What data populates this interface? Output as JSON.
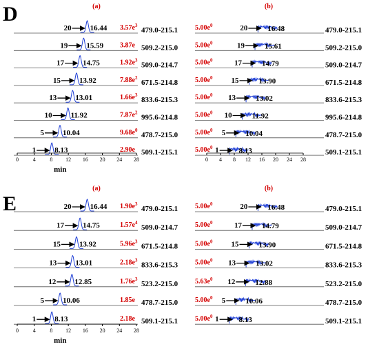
{
  "panels": [
    {
      "label": "D",
      "subpanels": [
        {
          "label": "(a)",
          "xticks": [
            0,
            4,
            8,
            12,
            16,
            20,
            24,
            28
          ],
          "xlabel": "min",
          "rows": [
            {
              "compound": 20,
              "rt": "16.44",
              "intensity": {
                "text": "3.57e",
                "sup": "3"
              },
              "transition": "479.0-215.1"
            },
            {
              "compound": 19,
              "rt": "15.59",
              "intensity": {
                "text": "3.87e"
              },
              "transition": "509.2-215.0"
            },
            {
              "compound": 17,
              "rt": "14.75",
              "intensity": {
                "text": "1.92e",
                "sup": "3"
              },
              "transition": "509.0-214.7"
            },
            {
              "compound": 15,
              "rt": "13.92",
              "intensity": {
                "text": "7.88e",
                "sup": "2"
              },
              "transition": "671.5-214.8"
            },
            {
              "compound": 13,
              "rt": "13.01",
              "intensity": {
                "text": "1.66e",
                "sup": "3"
              },
              "transition": "833.6-215.3"
            },
            {
              "compound": 10,
              "rt": "11.92",
              "intensity": {
                "text": "7.87e",
                "sup": "2"
              },
              "transition": "995.6-214.8"
            },
            {
              "compound": 5,
              "rt": "10.04",
              "intensity": {
                "text": "9.68e",
                "sup": "0"
              },
              "transition": "478.7-215.0"
            },
            {
              "compound": 1,
              "rt": "8.13",
              "intensity": {
                "text": "2.90e"
              },
              "transition": "509.1-215.1"
            }
          ]
        },
        {
          "label": "(b)",
          "xticks": [
            0,
            4,
            8,
            12,
            16,
            20,
            24,
            28
          ],
          "rows": [
            {
              "compound": 20,
              "rt": "16.48",
              "intensity": {
                "text": "5.00e",
                "sup": "0"
              },
              "transition": "479.0-215.1"
            },
            {
              "compound": 19,
              "rt": "15.61",
              "intensity": {
                "text": "5.00e",
                "sup": "0"
              },
              "transition": "509.2-215.0"
            },
            {
              "compound": 17,
              "rt": "14.79",
              "intensity": {
                "text": "5.00e",
                "sup": "0"
              },
              "transition": "509.0-214.7"
            },
            {
              "compound": 15,
              "rt": "13.90",
              "intensity": {
                "text": "5.00e",
                "sup": "0"
              },
              "transition": "671.5-214.8"
            },
            {
              "compound": 13,
              "rt": "13.02",
              "intensity": {
                "text": "5.00e",
                "sup": "0"
              },
              "transition": "833.6-215.3"
            },
            {
              "compound": 10,
              "rt": "11.92",
              "intensity": {
                "text": "5.00e",
                "sup": "0"
              },
              "transition": "995.6-214.8"
            },
            {
              "compound": 5,
              "rt": "10.04",
              "intensity": {
                "text": "5.00e",
                "sup": "0"
              },
              "transition": "478.7-215.0"
            },
            {
              "compound": 1,
              "rt": "8.13",
              "intensity": {
                "text": "5.00e",
                "sup": "0"
              },
              "transition": "509.1-215.1"
            }
          ]
        }
      ]
    },
    {
      "label": "E",
      "subpanels": [
        {
          "label": "(a)",
          "xticks": [
            0,
            4,
            8,
            12,
            16,
            20,
            24,
            28
          ],
          "xlabel": "min",
          "rows": [
            {
              "compound": 20,
              "rt": "16.44",
              "intensity": {
                "text": "1.90e",
                "sup": "3"
              },
              "transition": "479.0-215.1"
            },
            {
              "compound": 17,
              "rt": "14.75",
              "intensity": {
                "text": "1.57e",
                "sup": "4"
              },
              "transition": "509.0-214.7"
            },
            {
              "compound": 15,
              "rt": "13.92",
              "intensity": {
                "text": "5.96e",
                "sup": "3"
              },
              "transition": "671.5-214.8"
            },
            {
              "compound": 13,
              "rt": "13.01",
              "intensity": {
                "text": "2.18e",
                "sup": "3"
              },
              "transition": "833.6-215.3"
            },
            {
              "compound": 12,
              "rt": "12.85",
              "intensity": {
                "text": "1.76e",
                "sup": "3"
              },
              "transition": "523.2-215.0"
            },
            {
              "compound": 5,
              "rt": "10.06",
              "intensity": {
                "text": "1.85e"
              },
              "transition": "478.7-215.0"
            },
            {
              "compound": 1,
              "rt": "8.13",
              "intensity": {
                "text": "2.18e"
              },
              "transition": "509.1-215.1"
            }
          ]
        },
        {
          "label": "(b)",
          "rows": [
            {
              "compound": 20,
              "rt": "16.48",
              "intensity": {
                "text": "5.00e",
                "sup": "0"
              },
              "transition": "479.0-215.1"
            },
            {
              "compound": 17,
              "rt": "14.79",
              "intensity": {
                "text": "5.00e",
                "sup": "0"
              },
              "transition": "509.0-214.7"
            },
            {
              "compound": 15,
              "rt": "13.90",
              "intensity": {
                "text": "5.00e",
                "sup": "0"
              },
              "transition": "671.5-214.8"
            },
            {
              "compound": 13,
              "rt": "13.02",
              "intensity": {
                "text": "5.00e",
                "sup": "0"
              },
              "transition": "833.6-215.3"
            },
            {
              "compound": 12,
              "rt": "12.88",
              "intensity": {
                "text": "5.63e",
                "sup": "0"
              },
              "transition": "523.2-215.0"
            },
            {
              "compound": 5,
              "rt": "10.06",
              "intensity": {
                "text": "5.00e",
                "sup": "0"
              },
              "transition": "478.7-215.0"
            },
            {
              "compound": 1,
              "rt": "8.13",
              "intensity": {
                "text": "5.00e",
                "sup": "0"
              },
              "transition": "509.1-215.1"
            }
          ]
        }
      ]
    }
  ]
}
